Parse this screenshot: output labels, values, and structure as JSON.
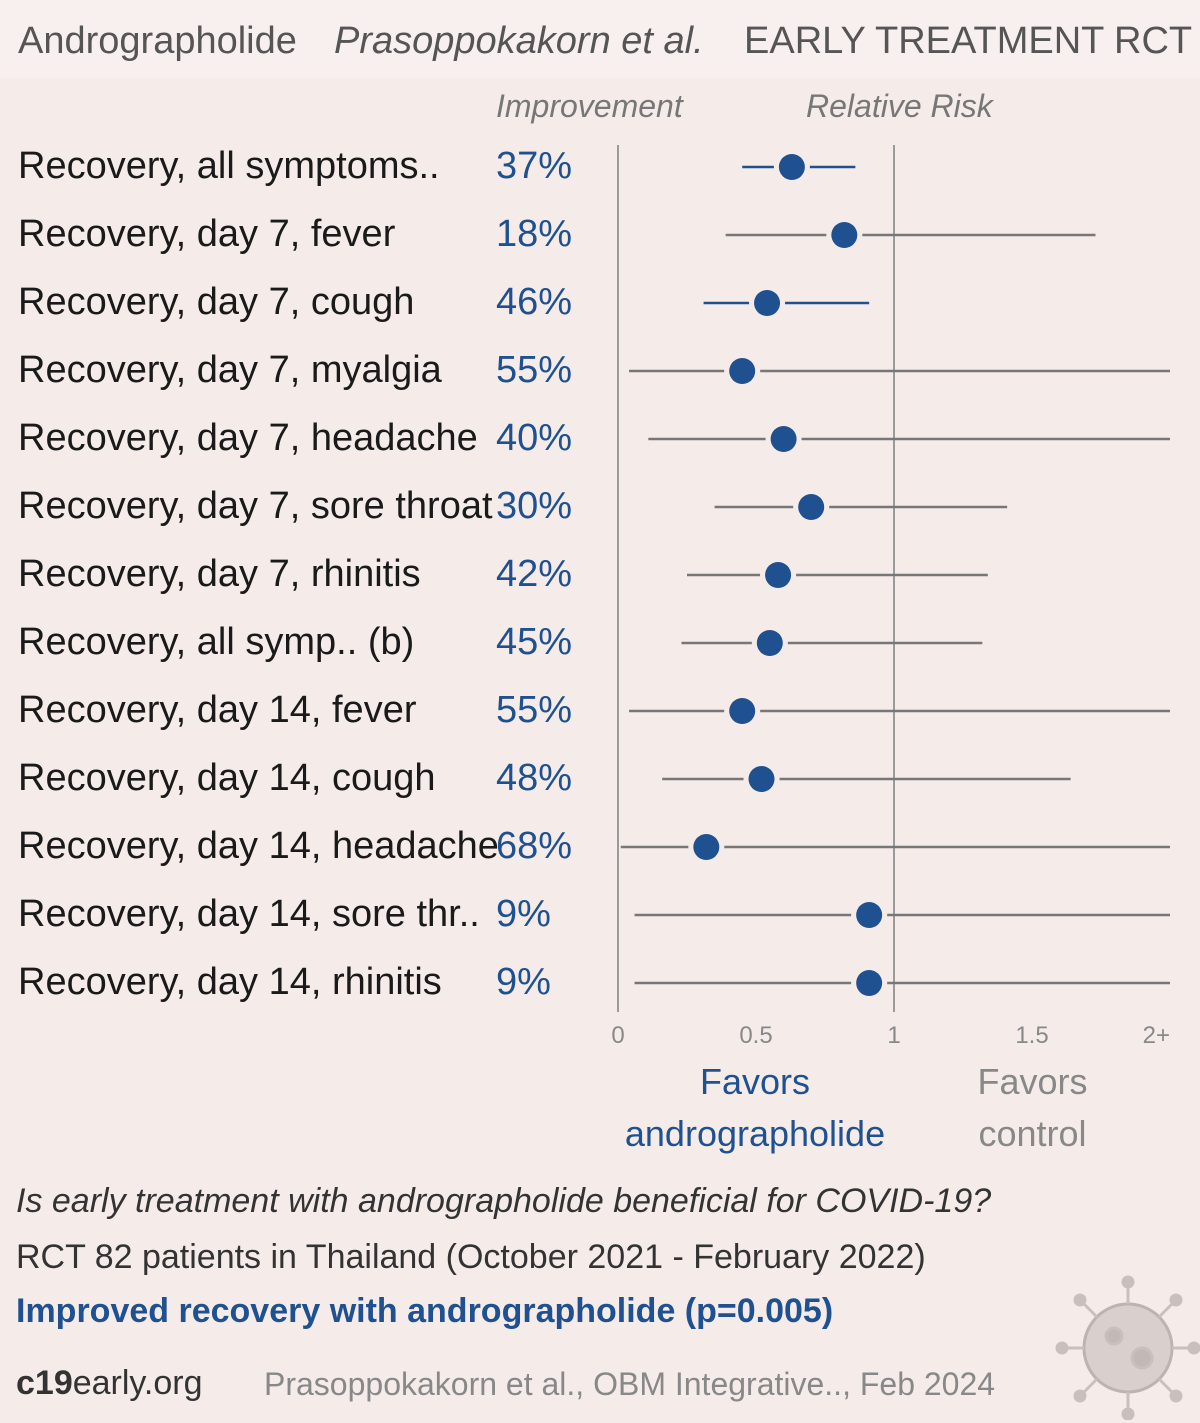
{
  "header": {
    "drug": "Andrographolide",
    "author": "Prasoppokakorn et al.",
    "stage": "EARLY TREATMENT",
    "design": "RCT"
  },
  "columns": {
    "improvement": "Improvement",
    "relative_risk": "Relative Risk"
  },
  "chart_data": {
    "type": "forest",
    "xlabel": "Relative Risk",
    "xlim": [
      0,
      2
    ],
    "xticks": [
      "0",
      "0.5",
      "1",
      "1.5",
      "2+"
    ],
    "reference_line": 1,
    "rows": [
      {
        "label": "Recovery, all symptoms..",
        "improvement": "37%",
        "rr": 0.63,
        "lo": 0.45,
        "hi": 0.86,
        "color": "#1f5190"
      },
      {
        "label": "Recovery, day 7, fever",
        "improvement": "18%",
        "rr": 0.82,
        "lo": 0.39,
        "hi": 1.73,
        "color": "#777777"
      },
      {
        "label": "Recovery, day 7, cough",
        "improvement": "46%",
        "rr": 0.54,
        "lo": 0.31,
        "hi": 0.91,
        "color": "#1f5190"
      },
      {
        "label": "Recovery, day 7, myalgia",
        "improvement": "55%",
        "rr": 0.45,
        "lo": 0.04,
        "hi": 2.0,
        "color": "#777777"
      },
      {
        "label": "Recovery, day 7, headache",
        "improvement": "40%",
        "rr": 0.6,
        "lo": 0.11,
        "hi": 2.0,
        "color": "#777777"
      },
      {
        "label": "Recovery, day 7, sore throat",
        "improvement": "30%",
        "rr": 0.7,
        "lo": 0.35,
        "hi": 1.41,
        "color": "#777777"
      },
      {
        "label": "Recovery, day 7, rhinitis",
        "improvement": "42%",
        "rr": 0.58,
        "lo": 0.25,
        "hi": 1.34,
        "color": "#777777"
      },
      {
        "label": "Recovery, all symp.. (b)",
        "improvement": "45%",
        "rr": 0.55,
        "lo": 0.23,
        "hi": 1.32,
        "color": "#777777"
      },
      {
        "label": "Recovery, day 14, fever",
        "improvement": "55%",
        "rr": 0.45,
        "lo": 0.04,
        "hi": 2.0,
        "color": "#777777"
      },
      {
        "label": "Recovery, day 14, cough",
        "improvement": "48%",
        "rr": 0.52,
        "lo": 0.16,
        "hi": 1.64,
        "color": "#777777"
      },
      {
        "label": "Recovery, day 14, headache",
        "improvement": "68%",
        "rr": 0.32,
        "lo": 0.01,
        "hi": 2.0,
        "color": "#777777"
      },
      {
        "label": "Recovery, day 14, sore thr..",
        "improvement": "9%",
        "rr": 0.91,
        "lo": 0.06,
        "hi": 2.0,
        "color": "#777777"
      },
      {
        "label": "Recovery, day 14, rhinitis",
        "improvement": "9%",
        "rr": 0.91,
        "lo": 0.06,
        "hi": 2.0,
        "color": "#777777"
      }
    ],
    "point_color": "#1f5190"
  },
  "favors": {
    "treatment_line1": "Favors",
    "treatment_line2": "andrographolide",
    "control_line1": "Favors",
    "control_line2": "control"
  },
  "footer": {
    "question": "Is early treatment with andrographolide beneficial for COVID-19?",
    "patients": "RCT 82 patients in Thailand (October 2021 - February 2022)",
    "result": "Improved recovery with andrographolide (p=0.005)",
    "site_bold": "c19",
    "site_rest": "early.org",
    "citation": "Prasoppokakorn et al., OBM Integrative.., Feb 2024"
  }
}
